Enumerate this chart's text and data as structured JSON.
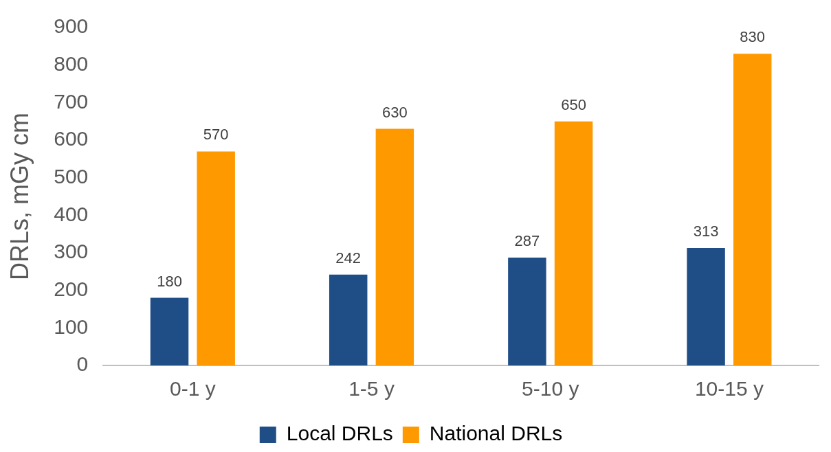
{
  "chart_data": {
    "type": "bar",
    "ylabel": "DRLs, mGy cm",
    "categories": [
      "0-1 y",
      "1-5 y",
      "5-10 y",
      "10-15 y"
    ],
    "series": [
      {
        "name": "Local DRLs",
        "color": "#1f4e87",
        "values": [
          180,
          242,
          287,
          313
        ]
      },
      {
        "name": "National DRLs",
        "color": "#ff9900",
        "values": [
          570,
          630,
          650,
          830
        ]
      }
    ],
    "ylim": [
      0,
      900
    ],
    "yticks": [
      0,
      100,
      200,
      300,
      400,
      500,
      600,
      700,
      800,
      900
    ],
    "grid": false,
    "legend": "bottom",
    "data_labels": true
  }
}
